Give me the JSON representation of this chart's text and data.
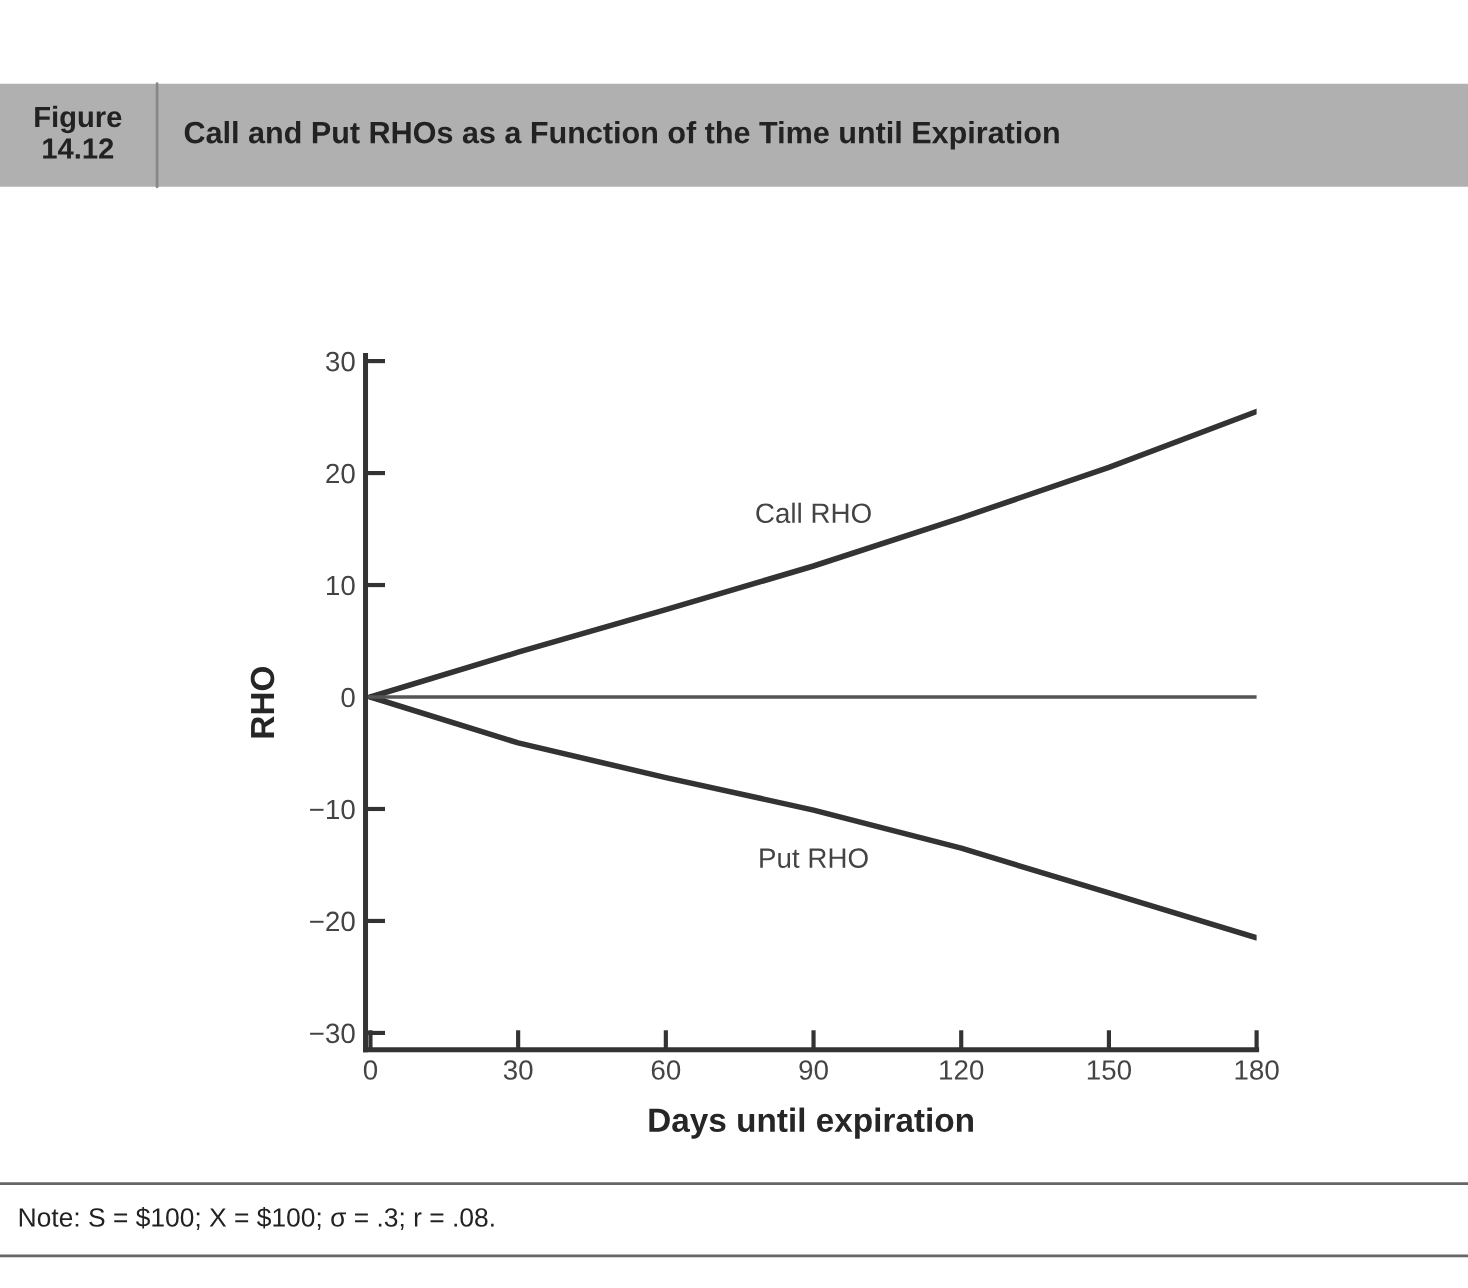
{
  "chart_data": {
    "type": "line",
    "title": "Call and Put RHOs as a Function of the Time until Expiration",
    "subtitle": "Figure 14.12",
    "xlabel": "Days until expiration",
    "ylabel": "RHO",
    "x": [
      0,
      30,
      60,
      90,
      120,
      150,
      180
    ],
    "series": [
      {
        "name": "Call RHO",
        "color": "#333333",
        "values": [
          0,
          4,
          7.8,
          11.7,
          16,
          20.5,
          25.5
        ]
      },
      {
        "name": "Put RHO",
        "color": "#333333",
        "values": [
          0,
          -4.1,
          -7.2,
          -10.1,
          -13.5,
          -17.5,
          -21.5
        ]
      }
    ],
    "xlim": [
      -1,
      180
    ],
    "xticks": [
      0,
      30,
      60,
      90,
      120,
      150,
      180
    ],
    "ylim": [
      -31.5,
      30.5
    ],
    "yticks": [
      -30,
      -20,
      -10,
      0,
      10,
      20,
      30
    ],
    "ref_lines": [
      {
        "axis": "y",
        "value": 0,
        "color": "#555555"
      }
    ],
    "annotations": [
      "Note: S = $100; X = $100; σ = .3; r = .08."
    ],
    "grid": false,
    "legend": false,
    "marker": "none",
    "line_style": "solid"
  }
}
